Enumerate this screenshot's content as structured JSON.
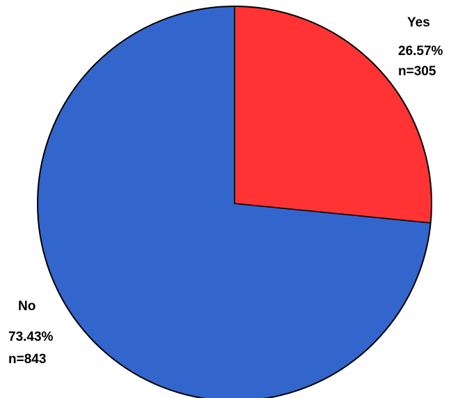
{
  "chart_data": {
    "type": "pie",
    "slices": [
      {
        "label": "Yes",
        "percent_label": "26.57%",
        "n_label": "n=305",
        "percent": 26.57,
        "count": 305,
        "color": "#ff3333"
      },
      {
        "label": "No",
        "percent_label": "73.43%",
        "n_label": "n=843",
        "percent": 73.43,
        "count": 843,
        "color": "#3366cc"
      }
    ],
    "start_angle_deg": 0,
    "direction": "clockwise",
    "outline_color": "#000000"
  }
}
